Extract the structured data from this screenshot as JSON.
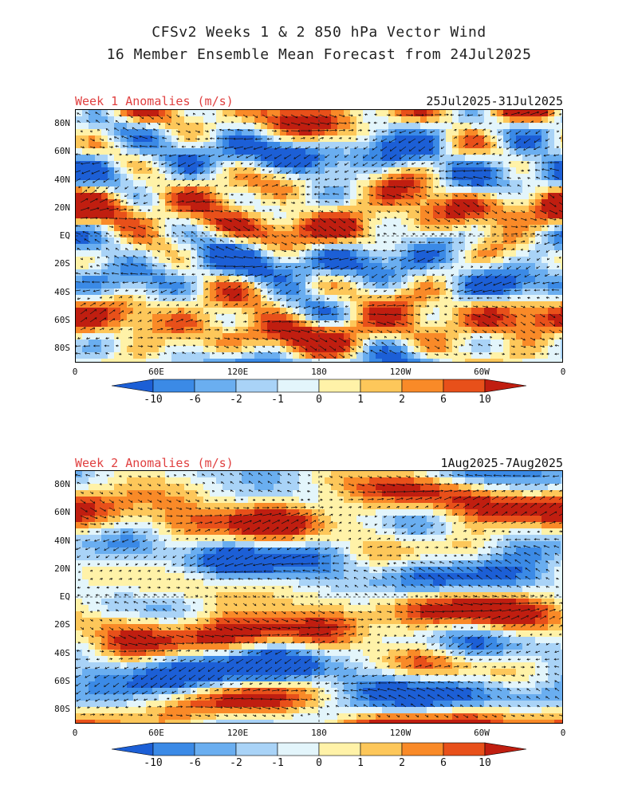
{
  "header": {
    "title_line1": "CFSv2 Weeks 1 & 2 850 hPa Vector Wind",
    "title_line2": "16 Member Ensemble Mean Forecast from 24Jul2025"
  },
  "panels": [
    {
      "label": "Week 1 Anomalies (m/s)",
      "date_range": "25Jul2025-31Jul2025"
    },
    {
      "label": "Week 2 Anomalies (m/s)",
      "date_range": "1Aug2025-7Aug2025"
    }
  ],
  "axes": {
    "lat_ticks": [
      "80N",
      "60N",
      "40N",
      "20N",
      "EQ",
      "20S",
      "40S",
      "60S",
      "80S"
    ],
    "lon_ticks": [
      "0",
      "60E",
      "120E",
      "180",
      "120W",
      "60W",
      "0"
    ]
  },
  "colorbar": {
    "labels": [
      "-10",
      "-6",
      "-2",
      "-1",
      "0",
      "1",
      "2",
      "6",
      "10"
    ],
    "colors": [
      "#1c5fd6",
      "#3b8ae6",
      "#6aaef0",
      "#a9d3f7",
      "#e3f5fb",
      "#fff2a8",
      "#fdc75a",
      "#f98a28",
      "#e8501a",
      "#c01e10"
    ]
  }
}
